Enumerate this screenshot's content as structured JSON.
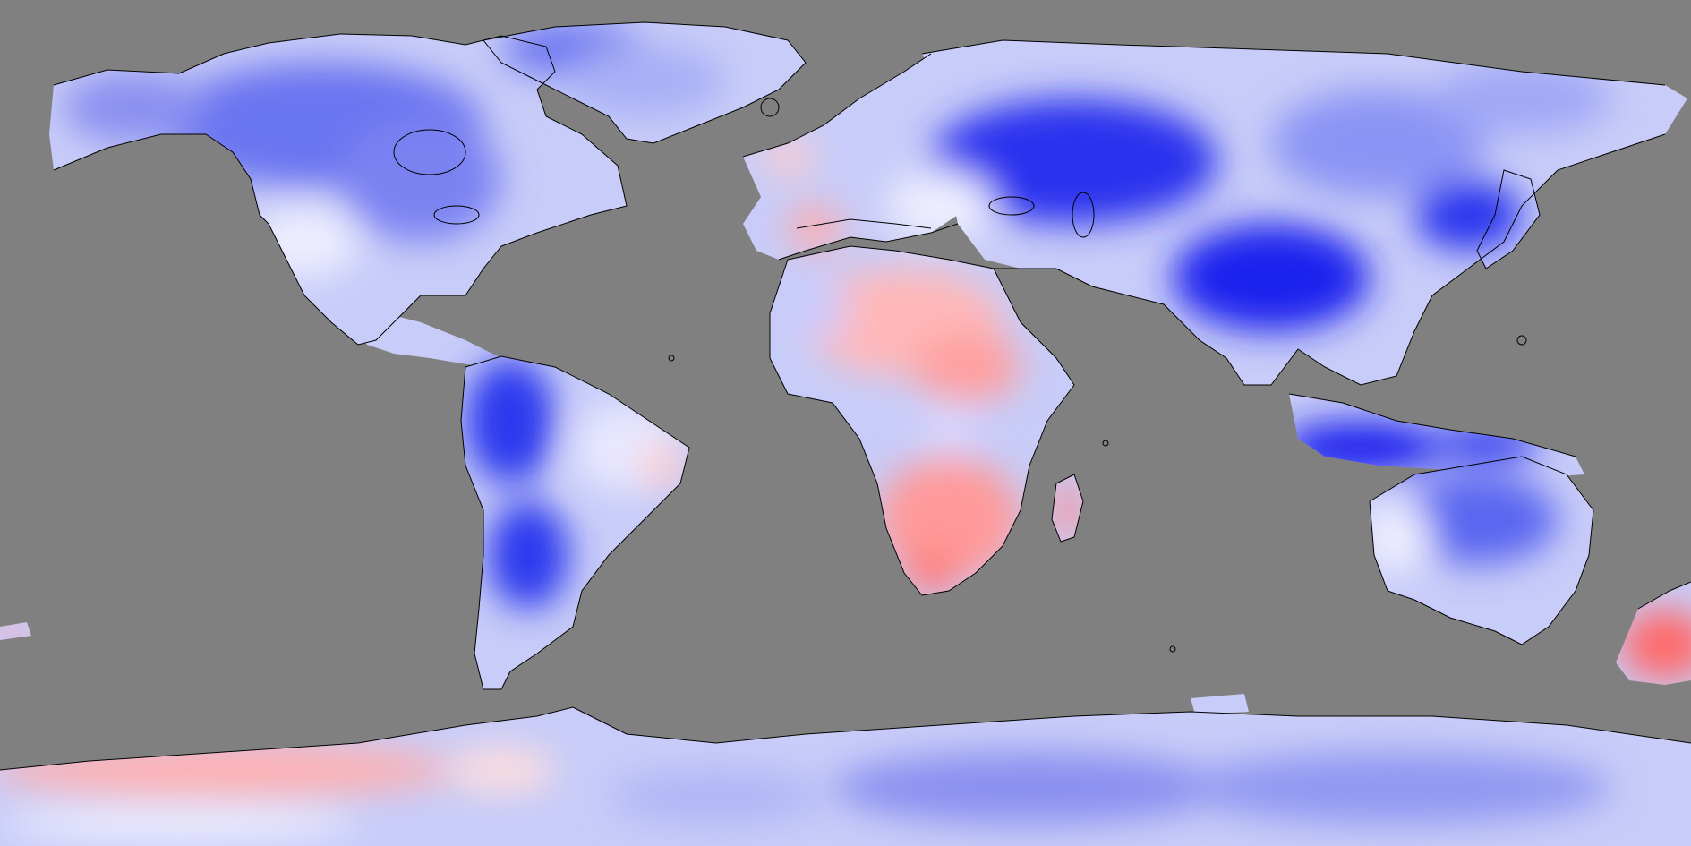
{
  "map": {
    "projection": "equirectangular",
    "background_color": "#808080",
    "coastline_color": "#000000",
    "colorscale": {
      "low": "#0000ff",
      "mid": "#ffffff",
      "high": "#ff3030"
    },
    "regions": [
      "north-america",
      "greenland",
      "south-america",
      "europe",
      "asia",
      "africa",
      "australia",
      "new-zealand",
      "madagascar",
      "antarctica"
    ]
  }
}
